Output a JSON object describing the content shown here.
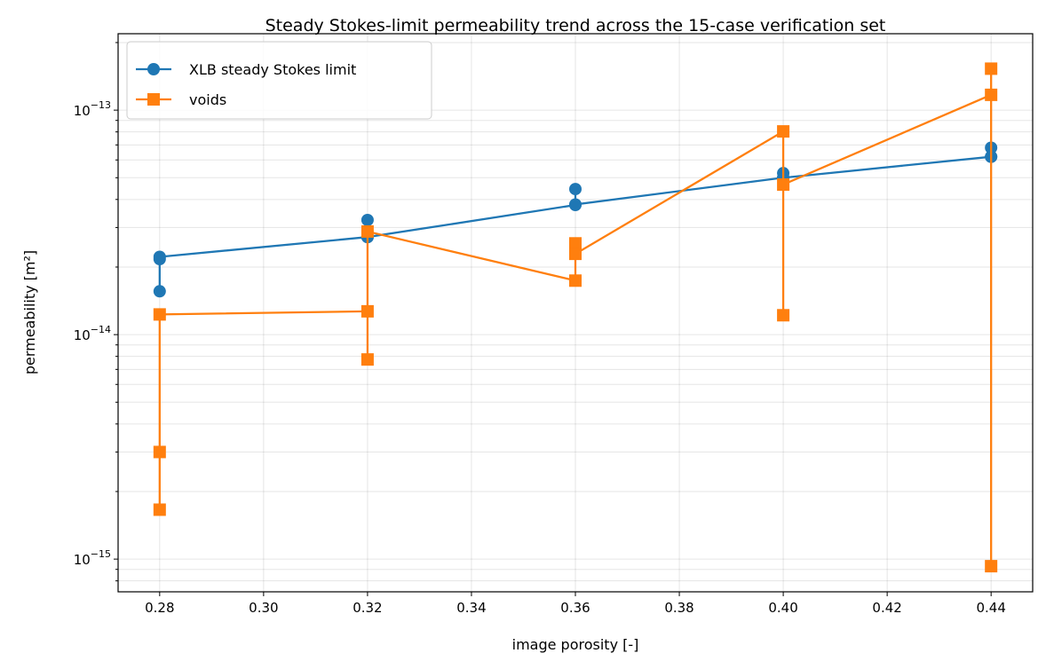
{
  "chart_data": {
    "type": "line",
    "title": "Steady Stokes-limit permeability trend across the 15-case verification set",
    "xlabel": "image porosity [-]",
    "ylabel": "permeability [m²]",
    "xlim": [
      0.272,
      0.448
    ],
    "ylim": [
      7.15e-16,
      2.19e-13
    ],
    "yscale": "log",
    "grid": true,
    "legend_placement": "upper-left",
    "xticks": [
      0.28,
      0.3,
      0.32,
      0.34,
      0.36,
      0.38,
      0.4,
      0.42,
      0.44
    ],
    "xtick_labels": [
      "0.28",
      "0.30",
      "0.32",
      "0.34",
      "0.36",
      "0.38",
      "0.40",
      "0.42",
      "0.44"
    ],
    "yticks": [
      1e-15,
      1e-14,
      1e-13
    ],
    "ytick_labels": [
      {
        "base": "10",
        "exp": "−15"
      },
      {
        "base": "10",
        "exp": "−14"
      },
      {
        "base": "10",
        "exp": "−13"
      }
    ],
    "series": [
      {
        "name": "XLB steady Stokes limit",
        "color": "#1f77b4",
        "marker": "circle",
        "x": [
          0.28,
          0.28,
          0.28,
          0.32,
          0.32,
          0.32,
          0.36,
          0.36,
          0.36,
          0.4,
          0.4,
          0.4,
          0.44,
          0.44,
          0.44
        ],
        "y": [
          1.56e-14,
          2.17e-14,
          2.22e-14,
          2.72e-14,
          3.24e-14,
          2.72e-14,
          3.78e-14,
          4.45e-14,
          3.8e-14,
          5e-14,
          5.24e-14,
          5e-14,
          6.2e-14,
          6.8e-14,
          6.2e-14
        ]
      },
      {
        "name": "voids",
        "color": "#ff7f0e",
        "marker": "square",
        "x": [
          0.28,
          0.28,
          0.28,
          0.32,
          0.32,
          0.32,
          0.36,
          0.36,
          0.36,
          0.4,
          0.4,
          0.4,
          0.44,
          0.44,
          0.44
        ],
        "y": [
          1.66e-15,
          3e-15,
          1.23e-14,
          1.27e-14,
          7.75e-15,
          2.88e-14,
          1.74e-14,
          2.55e-14,
          2.29e-14,
          8.04e-14,
          1.22e-14,
          4.66e-14,
          1.17e-13,
          9.3e-16,
          1.53e-13
        ]
      }
    ]
  }
}
